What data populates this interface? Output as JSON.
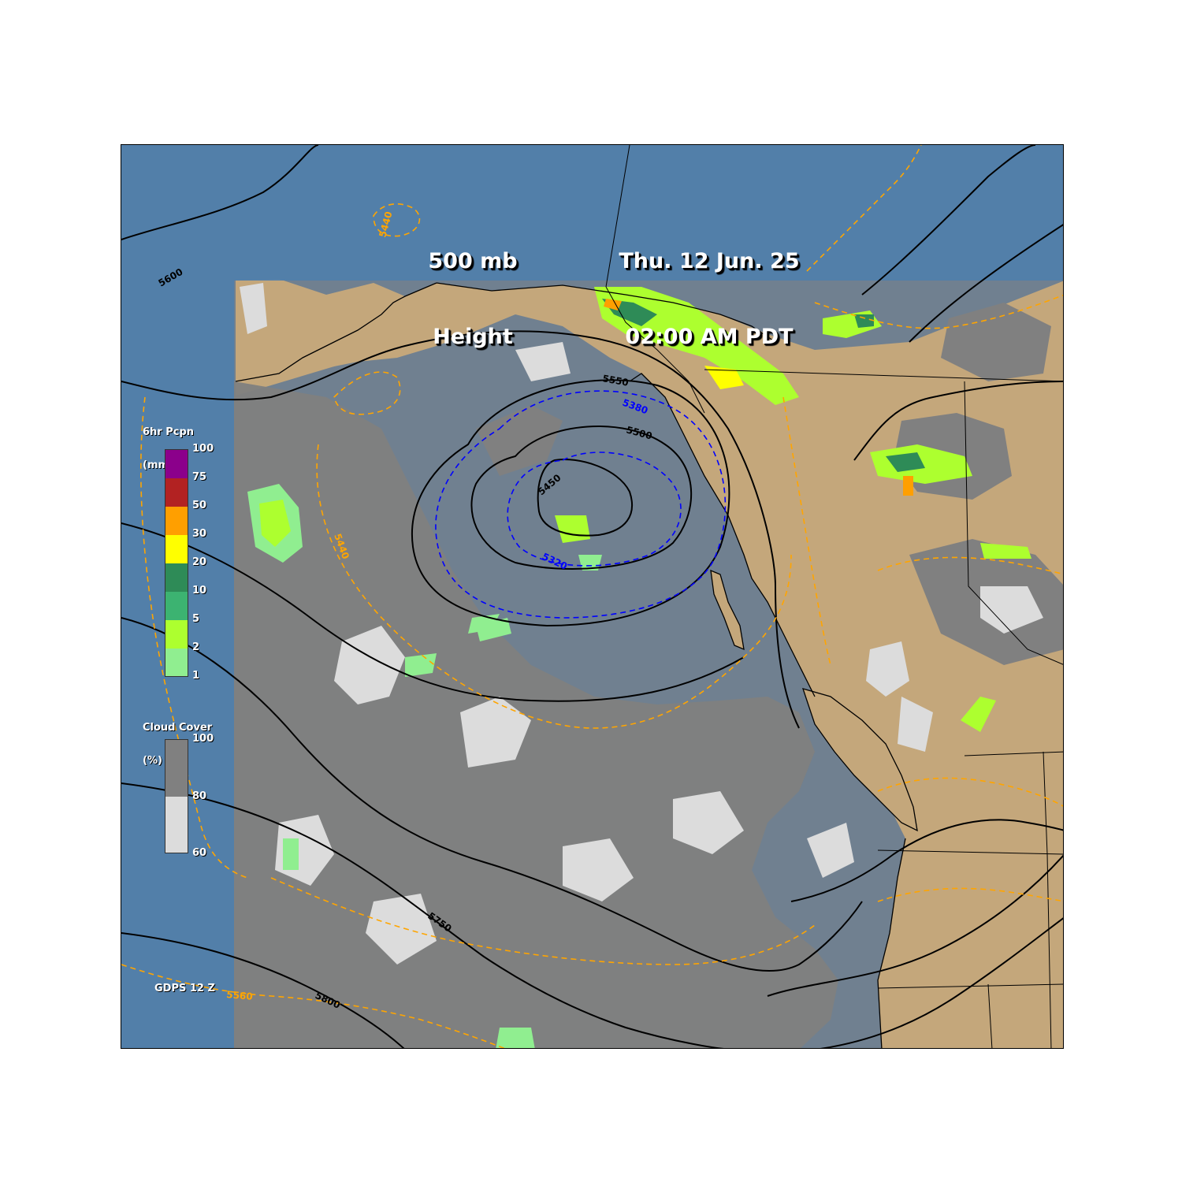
{
  "header": {
    "field_line1": "500 mb",
    "field_line2": "Height",
    "date_line": "Thu. 12 Jun. 25",
    "time_line": "02:00 AM PDT"
  },
  "model_label": "GDPS 12 Z",
  "precip_legend": {
    "title_line1": "6hr Pcpn",
    "title_line2": "(mm)",
    "ticks": [
      "100",
      "75",
      "50",
      "30",
      "20",
      "10",
      "5",
      "2",
      "1"
    ],
    "colors": [
      "#8b008b",
      "#b22222",
      "#ff9f00",
      "#ffff00",
      "#2e8b57",
      "#3cb371",
      "#adff2f",
      "#90ee90"
    ]
  },
  "cloud_legend": {
    "title_line1": "Cloud Cover",
    "title_line2": "(%)",
    "ticks": [
      "100",
      "80",
      "60"
    ],
    "colors": [
      "#808080",
      "#dcdcdc"
    ]
  },
  "height_contour_labels": [
    "5600",
    "5550",
    "5500",
    "5450",
    "5750",
    "5800"
  ],
  "thickness_contour_labels": [
    "5440",
    "5440",
    "5380",
    "5320",
    "5560"
  ],
  "colors": {
    "ocean": "#708090",
    "land": "#c4a77b",
    "outer_domain": "#4f7fab",
    "cloud_heavy": "#808080",
    "cloud_light": "#dcdcdc",
    "height_contour": "#000000",
    "thickness_cold": "#0000ff",
    "thickness_warm": "#ffa500"
  }
}
